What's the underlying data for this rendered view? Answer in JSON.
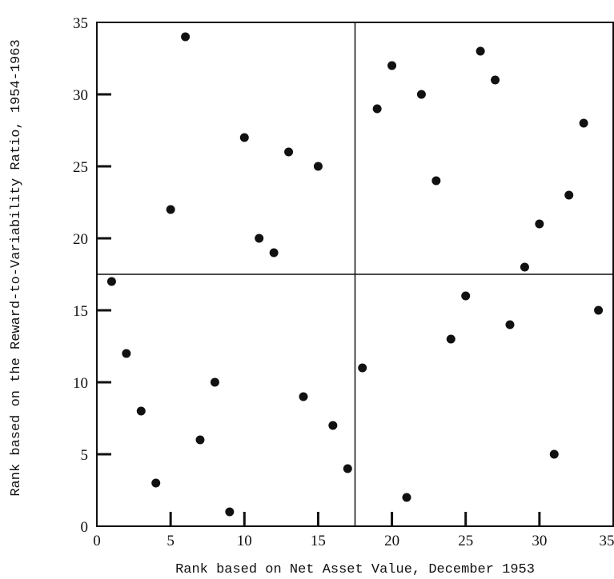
{
  "chart_data": {
    "type": "scatter",
    "title": "",
    "xlabel": "Rank based on Net Asset Value, December 1953",
    "ylabel": "Rank based on the Reward-to-Variability Ratio, 1954-1963",
    "xlim": [
      0,
      35
    ],
    "ylim": [
      0,
      35
    ],
    "xticks": [
      "0",
      "5",
      "10",
      "15",
      "20",
      "25",
      "30",
      "35"
    ],
    "yticks": [
      "0",
      "5",
      "10",
      "15",
      "20",
      "25",
      "30",
      "35"
    ],
    "divider_x": 17.5,
    "divider_y": 17.5,
    "grid": false,
    "legend": "none",
    "marker_color": "#111111",
    "points": [
      {
        "x": 1,
        "y": 17
      },
      {
        "x": 2,
        "y": 12
      },
      {
        "x": 3,
        "y": 8
      },
      {
        "x": 4,
        "y": 3
      },
      {
        "x": 5,
        "y": 22
      },
      {
        "x": 6,
        "y": 34
      },
      {
        "x": 7,
        "y": 6
      },
      {
        "x": 8,
        "y": 10
      },
      {
        "x": 9,
        "y": 1
      },
      {
        "x": 10,
        "y": 27
      },
      {
        "x": 11,
        "y": 20
      },
      {
        "x": 12,
        "y": 19
      },
      {
        "x": 13,
        "y": 26
      },
      {
        "x": 14,
        "y": 9
      },
      {
        "x": 15,
        "y": 25
      },
      {
        "x": 16,
        "y": 7
      },
      {
        "x": 17,
        "y": 4
      },
      {
        "x": 18,
        "y": 11
      },
      {
        "x": 19,
        "y": 29
      },
      {
        "x": 20,
        "y": 32
      },
      {
        "x": 21,
        "y": 2
      },
      {
        "x": 22,
        "y": 30
      },
      {
        "x": 23,
        "y": 24
      },
      {
        "x": 24,
        "y": 13
      },
      {
        "x": 25,
        "y": 16
      },
      {
        "x": 26,
        "y": 33
      },
      {
        "x": 27,
        "y": 31
      },
      {
        "x": 28,
        "y": 14
      },
      {
        "x": 29,
        "y": 18
      },
      {
        "x": 30,
        "y": 21
      },
      {
        "x": 31,
        "y": 5
      },
      {
        "x": 32,
        "y": 23
      },
      {
        "x": 33,
        "y": 28
      },
      {
        "x": 34,
        "y": 15
      }
    ]
  }
}
